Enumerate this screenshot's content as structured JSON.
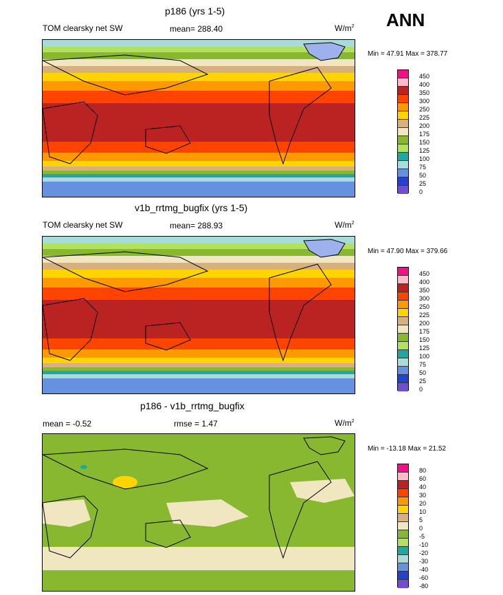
{
  "season": "ANN",
  "panels": [
    {
      "title": "p186 (yrs 1-5)",
      "left": "TOM clearsky net SW",
      "center": "mean= 288.40",
      "units": "W/m",
      "units_sup": "2",
      "minmax": "Min =  47.91 Max = 378.77"
    },
    {
      "title": "v1b_rrtmg_bugfix (yrs 1-5)",
      "left": "TOM clearsky net SW",
      "center": "mean= 288.93",
      "units": "W/m",
      "units_sup": "2",
      "minmax": "Min =  47.90 Max = 379.66"
    },
    {
      "title": "p186 - v1b_rrtmg_bugfix",
      "left": "mean =  -0.52",
      "center": "rmse =   1.47",
      "units": "W/m",
      "units_sup": "2",
      "minmax": "Min = -13.18 Max =  21.52"
    }
  ],
  "chart_data": [
    {
      "type": "heatmap",
      "title": "p186 (yrs 1-5)",
      "variable": "TOM clearsky net SW",
      "mean": 288.4,
      "min": 47.91,
      "max": 378.77,
      "levels": [
        "450",
        "400",
        "350",
        "300",
        "250",
        "225",
        "200",
        "175",
        "150",
        "125",
        "100",
        "75",
        "50",
        "25",
        "0"
      ],
      "colors": [
        "#ee1188",
        "#ffbbcc",
        "#bb2222",
        "#ff4400",
        "#ff9900",
        "#ffd400",
        "#d8b080",
        "#f0e6c0",
        "#88b830",
        "#b4e060",
        "#20a8a0",
        "#a8dcdc",
        "#6690e0",
        "#2244cc",
        "#6f4fd0"
      ]
    },
    {
      "type": "heatmap",
      "title": "v1b_rrtmg_bugfix (yrs 1-5)",
      "variable": "TOM clearsky net SW",
      "mean": 288.93,
      "min": 47.9,
      "max": 379.66,
      "levels": [
        "450",
        "400",
        "350",
        "300",
        "250",
        "225",
        "200",
        "175",
        "150",
        "125",
        "100",
        "75",
        "50",
        "25",
        "0"
      ],
      "colors": [
        "#ee1188",
        "#ffbbcc",
        "#bb2222",
        "#ff4400",
        "#ff9900",
        "#ffd400",
        "#d8b080",
        "#f0e6c0",
        "#88b830",
        "#b4e060",
        "#20a8a0",
        "#a8dcdc",
        "#6690e0",
        "#2244cc",
        "#6f4fd0"
      ]
    },
    {
      "type": "heatmap",
      "title": "p186 - v1b_rrtmg_bugfix",
      "mean": -0.52,
      "rmse": 1.47,
      "min": -13.18,
      "max": 21.52,
      "levels": [
        "80",
        "60",
        "40",
        "30",
        "20",
        "10",
        "5",
        "0",
        "-5",
        "-10",
        "-20",
        "-30",
        "-40",
        "-60",
        "-80"
      ],
      "colors": [
        "#ee1188",
        "#ffbbcc",
        "#bb2222",
        "#ff4400",
        "#ff9900",
        "#ffd400",
        "#d8b080",
        "#f0e6c0",
        "#88b830",
        "#b4e060",
        "#20a8a0",
        "#a8dcdc",
        "#6690e0",
        "#2244cc",
        "#6f4fd0"
      ]
    }
  ]
}
